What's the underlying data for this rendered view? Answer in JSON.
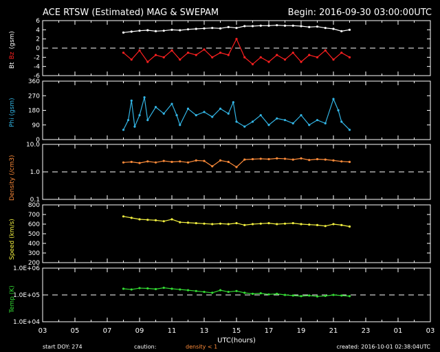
{
  "header": {
    "title": "ACE RTSW (Estimated) MAG & SWEPAM",
    "begin": "Begin: 2016-09-30 03:00:00UTC"
  },
  "footer": {
    "start_doy": "start DOY: 274",
    "caution": "caution:",
    "density_note": "density < 1",
    "created": "created: 2016-10-01 02:38:04UTC"
  },
  "colors": {
    "background": "#000000",
    "axes": "#ffffff",
    "bt": "#ffffff",
    "bz": "#ff2020",
    "phi": "#33b5e5",
    "density": "#ff8c3a",
    "speed": "#f2f040",
    "temp": "#33dd33",
    "caution": "#ff8c3a"
  },
  "chart_data": [
    {
      "type": "scatter",
      "panel": "mag",
      "ylabel_parts": [
        "Bt",
        "Bz",
        "(gsm)"
      ],
      "yticks": [
        "6",
        "4",
        "2",
        "0",
        "-2",
        "-4",
        "-6"
      ],
      "ylim": [
        -6,
        6
      ],
      "dashed_reference": 0,
      "grid": false,
      "series": [
        {
          "name": "Bt",
          "x": [
            8.0,
            8.5,
            9,
            9.5,
            10,
            10.5,
            11,
            11.5,
            12,
            12.5,
            13,
            13.5,
            14,
            14.5,
            15,
            15.5,
            16,
            16.5,
            17,
            17.5,
            18,
            18.5,
            19,
            19.5,
            20,
            20.5,
            21,
            21.5,
            22
          ],
          "values": [
            3.4,
            3.6,
            3.8,
            3.9,
            3.7,
            3.8,
            4.0,
            3.9,
            4.1,
            4.2,
            4.3,
            4.4,
            4.3,
            4.6,
            4.4,
            4.8,
            4.8,
            4.9,
            4.9,
            5.0,
            4.9,
            4.9,
            4.8,
            4.6,
            4.7,
            4.4,
            4.2,
            3.7,
            4.0
          ]
        },
        {
          "name": "Bz",
          "x": [
            8.0,
            8.5,
            9,
            9.5,
            10,
            10.5,
            11,
            11.5,
            12,
            12.5,
            13,
            13.5,
            14,
            14.5,
            15,
            15.5,
            16,
            16.5,
            17,
            17.5,
            18,
            18.5,
            19,
            19.5,
            20,
            20.5,
            21,
            21.5,
            22
          ],
          "values": [
            -1.0,
            -2.5,
            -0.5,
            -3.0,
            -1.5,
            -2.0,
            -0.5,
            -2.5,
            -1.0,
            -1.5,
            -0.3,
            -2.0,
            -1.0,
            -1.5,
            2.0,
            -2.0,
            -3.5,
            -2.0,
            -3.0,
            -1.5,
            -2.5,
            -1.0,
            -3.0,
            -1.5,
            -2.0,
            -0.5,
            -2.5,
            -1.0,
            -2.0
          ]
        }
      ]
    },
    {
      "type": "scatter",
      "panel": "phi",
      "ylabel": "Phi (gsm)",
      "yticks": [
        "360",
        "270",
        "180",
        "90",
        "0"
      ],
      "ylim": [
        0,
        360
      ],
      "grid": false,
      "series": [
        {
          "name": "Phi",
          "x": [
            8.0,
            8.3,
            8.5,
            8.7,
            9,
            9.3,
            9.5,
            10,
            10.5,
            11,
            11.3,
            11.5,
            12,
            12.5,
            13,
            13.5,
            14,
            14.5,
            14.8,
            15,
            15.5,
            16,
            16.5,
            17,
            17.5,
            18,
            18.5,
            19,
            19.5,
            20,
            20.5,
            21,
            21.3,
            21.5,
            22
          ],
          "values": [
            60,
            120,
            240,
            80,
            150,
            260,
            120,
            200,
            160,
            220,
            150,
            90,
            190,
            150,
            170,
            140,
            190,
            160,
            230,
            110,
            80,
            110,
            150,
            90,
            130,
            120,
            100,
            150,
            90,
            120,
            100,
            250,
            180,
            110,
            60
          ]
        }
      ]
    },
    {
      "type": "scatter",
      "panel": "density",
      "ylabel": "Density (/cm3)",
      "yticks": [
        "10.0",
        "1.0",
        "0.1"
      ],
      "yscale": "log",
      "ylim": [
        0.1,
        10
      ],
      "dashed_reference": 1.0,
      "grid": false,
      "series": [
        {
          "name": "Density",
          "x": [
            8.0,
            8.5,
            9,
            9.5,
            10,
            10.5,
            11,
            11.5,
            12,
            12.5,
            13,
            13.5,
            14,
            14.5,
            15,
            15.5,
            16,
            16.5,
            17,
            17.5,
            18,
            18.5,
            19,
            19.5,
            20,
            20.5,
            21,
            21.5,
            22
          ],
          "values": [
            2.2,
            2.3,
            2.1,
            2.4,
            2.2,
            2.5,
            2.3,
            2.4,
            2.2,
            2.6,
            2.5,
            1.6,
            2.6,
            2.3,
            1.5,
            2.8,
            2.9,
            3.0,
            2.9,
            3.1,
            3.0,
            2.8,
            3.1,
            2.7,
            2.9,
            2.8,
            2.6,
            2.4,
            2.3
          ]
        }
      ]
    },
    {
      "type": "scatter",
      "panel": "speed",
      "ylabel": "Speed (km/s)",
      "yticks": [
        "800",
        "700",
        "600",
        "500",
        "400",
        "300",
        "200"
      ],
      "ylim": [
        200,
        800
      ],
      "grid": false,
      "series": [
        {
          "name": "Speed",
          "x": [
            8.0,
            8.5,
            9,
            9.5,
            10,
            10.5,
            11,
            11.5,
            12,
            12.5,
            13,
            13.5,
            14,
            14.5,
            15,
            15.5,
            16,
            16.5,
            17,
            17.5,
            18,
            18.5,
            19,
            19.5,
            20,
            20.5,
            21,
            21.5,
            22
          ],
          "values": [
            680,
            665,
            650,
            645,
            640,
            630,
            650,
            620,
            615,
            610,
            605,
            600,
            605,
            600,
            610,
            590,
            600,
            605,
            610,
            600,
            605,
            610,
            600,
            595,
            590,
            580,
            600,
            590,
            575
          ]
        }
      ]
    },
    {
      "type": "scatter",
      "panel": "temp",
      "ylabel": "Temp (K)",
      "yticks": [
        "1.0E+06",
        "1.0E+05",
        "1.0E+04"
      ],
      "yscale": "log",
      "ylim": [
        10000,
        1000000
      ],
      "dashed_reference": 100000,
      "grid": false,
      "series": [
        {
          "name": "Temp",
          "x": [
            8.0,
            8.5,
            9,
            9.5,
            10,
            10.5,
            11,
            11.5,
            12,
            12.5,
            13,
            13.5,
            14,
            14.5,
            15,
            15.5,
            16,
            16.5,
            17,
            17.5,
            18,
            18.5,
            19,
            19.5,
            20,
            20.5,
            21,
            21.5,
            22
          ],
          "values": [
            170000,
            160000,
            180000,
            175000,
            165000,
            185000,
            170000,
            160000,
            150000,
            140000,
            130000,
            120000,
            150000,
            130000,
            140000,
            120000,
            110000,
            115000,
            105000,
            110000,
            100000,
            95000,
            90000,
            95000,
            88000,
            92000,
            100000,
            95000,
            90000
          ]
        }
      ]
    }
  ],
  "xaxis": {
    "label": "UTC(hours)",
    "xlim": [
      3,
      27
    ],
    "ticks": [
      "03",
      "05",
      "07",
      "09",
      "11",
      "13",
      "15",
      "17",
      "19",
      "21",
      "23",
      "01",
      "03"
    ]
  }
}
